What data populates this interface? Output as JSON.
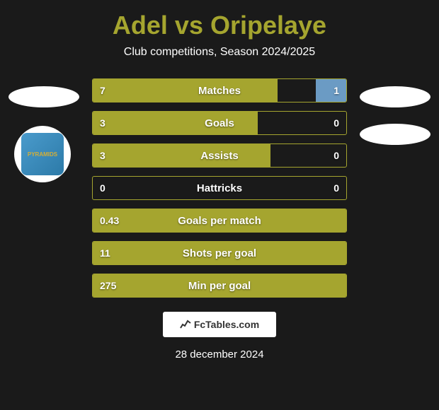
{
  "header": {
    "title": "Adel vs Oripelaye",
    "subtitle": "Club competitions, Season 2024/2025",
    "title_color": "#a5a52f",
    "subtitle_color": "#ffffff"
  },
  "club_logo_text": "PYRAMIDS",
  "stats": [
    {
      "label": "Matches",
      "left_val": "7",
      "right_val": "1",
      "left_pct": 73,
      "right_pct": 12
    },
    {
      "label": "Goals",
      "left_val": "3",
      "right_val": "0",
      "left_pct": 65,
      "right_pct": 0
    },
    {
      "label": "Assists",
      "left_val": "3",
      "right_val": "0",
      "left_pct": 70,
      "right_pct": 0
    },
    {
      "label": "Hattricks",
      "left_val": "0",
      "right_val": "0",
      "left_pct": 0,
      "right_pct": 0
    },
    {
      "label": "Goals per match",
      "left_val": "0.43",
      "right_val": "",
      "left_pct": 100,
      "right_pct": 0
    },
    {
      "label": "Shots per goal",
      "left_val": "11",
      "right_val": "",
      "left_pct": 100,
      "right_pct": 0
    },
    {
      "label": "Min per goal",
      "left_val": "275",
      "right_val": "",
      "left_pct": 100,
      "right_pct": 0
    }
  ],
  "colors": {
    "left_bar": "#a5a52f",
    "right_bar": "#6b9bc4",
    "background": "#1a1a1a",
    "border": "#a5a52f"
  },
  "footer": {
    "brand": "FcTables.com",
    "date": "28 december 2024"
  }
}
